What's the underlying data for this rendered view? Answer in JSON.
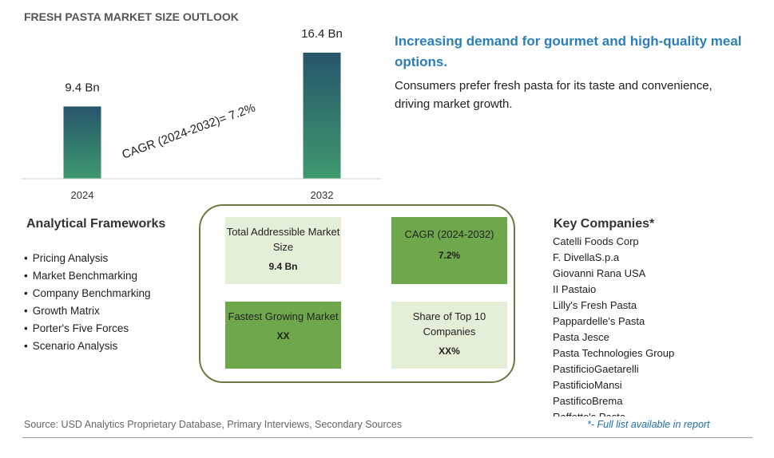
{
  "title": "FRESH PASTA MARKET SIZE OUTLOOK",
  "chart_data": {
    "type": "bar",
    "categories": [
      "2024",
      "2032"
    ],
    "values": [
      9.4,
      16.4
    ],
    "data_labels": [
      "9.4 Bn",
      "16.4 Bn"
    ],
    "annotation": "CAGR (2024-2032)=  7.2%",
    "unit": "Bn",
    "grid": false,
    "legend": "none",
    "colors": {
      "bar_top": "#27556b",
      "bar_bottom": "#3e9a6e"
    }
  },
  "headline": "Increasing demand for gourmet and high-quality meal options.",
  "subtext": "Consumers prefer fresh pasta for its taste and convenience, driving market growth.",
  "frameworks": {
    "title": "Analytical Frameworks",
    "items": [
      "Pricing Analysis",
      "Market Benchmarking",
      "Company Benchmarking",
      "Growth Matrix",
      "Porter's Five Forces",
      "Scenario Analysis"
    ]
  },
  "summary": {
    "tam_label": "Total Addressible Market Size",
    "tam_value": "9.4 Bn",
    "cagr_label": "CAGR (2024-2032)",
    "cagr_value": "7.2%",
    "fastest_label": "Fastest Growing Market",
    "fastest_value": "XX",
    "share_label": "Share of Top 10 Companies",
    "share_value": "XX%"
  },
  "companies": {
    "title": "Key Companies*",
    "items": [
      "Catelli Foods Corp",
      "F. DivellaS.p.a",
      "Giovanni Rana USA",
      "II Pastaio",
      "Lilly's Fresh Pasta",
      "Pappardelle's Pasta",
      "Pasta Jesce",
      "Pasta Technologies Group",
      "PastificioGaetarelli",
      "PastificioMansi",
      "PastificoBrema",
      "Raffetto's Pasta"
    ]
  },
  "source": "Source: USD Analytics Proprietary Database, Primary Interviews, Secondary Sources",
  "footnote": "*- Full list available in report"
}
